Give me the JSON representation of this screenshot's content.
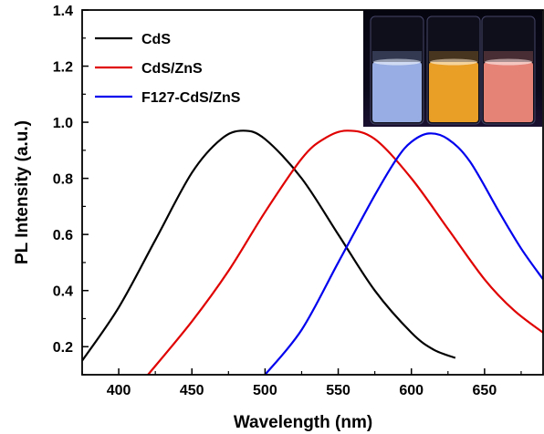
{
  "chart_data": {
    "type": "line",
    "xlabel": "Wavelength (nm)",
    "ylabel": "PL Intensity (a.u.)",
    "xlim": [
      375,
      690
    ],
    "ylim": [
      0.1,
      1.4
    ],
    "xticks": [
      "400",
      "450",
      "500",
      "550",
      "600",
      "650"
    ],
    "yticks": [
      "0.2",
      "0.4",
      "0.6",
      "0.8",
      "1.0",
      "1.2",
      "1.4"
    ],
    "legend_position": "top-left",
    "series": [
      {
        "name": "CdS",
        "color": "#000000",
        "x": [
          375,
          400,
          425,
          450,
          470,
          485,
          500,
          525,
          550,
          575,
          600,
          615,
          630
        ],
        "y": [
          0.15,
          0.34,
          0.58,
          0.82,
          0.94,
          0.97,
          0.94,
          0.8,
          0.6,
          0.4,
          0.25,
          0.19,
          0.16
        ]
      },
      {
        "name": "CdS/ZnS",
        "color": "#e00000",
        "x": [
          420,
          450,
          475,
          500,
          525,
          540,
          556,
          575,
          600,
          625,
          650,
          670,
          690
        ],
        "y": [
          0.1,
          0.29,
          0.47,
          0.68,
          0.87,
          0.94,
          0.97,
          0.94,
          0.8,
          0.62,
          0.44,
          0.33,
          0.25
        ]
      },
      {
        "name": "F127-CdS/ZnS",
        "color": "#0000ee",
        "x": [
          500,
          525,
          550,
          575,
          590,
          600,
          612,
          625,
          640,
          660,
          675,
          690
        ],
        "y": [
          0.1,
          0.26,
          0.5,
          0.74,
          0.87,
          0.93,
          0.96,
          0.94,
          0.86,
          0.68,
          0.55,
          0.44
        ]
      }
    ]
  },
  "inset": {
    "vial_colors": [
      "#9fb6ee",
      "#f5a726",
      "#f28a7c"
    ]
  }
}
